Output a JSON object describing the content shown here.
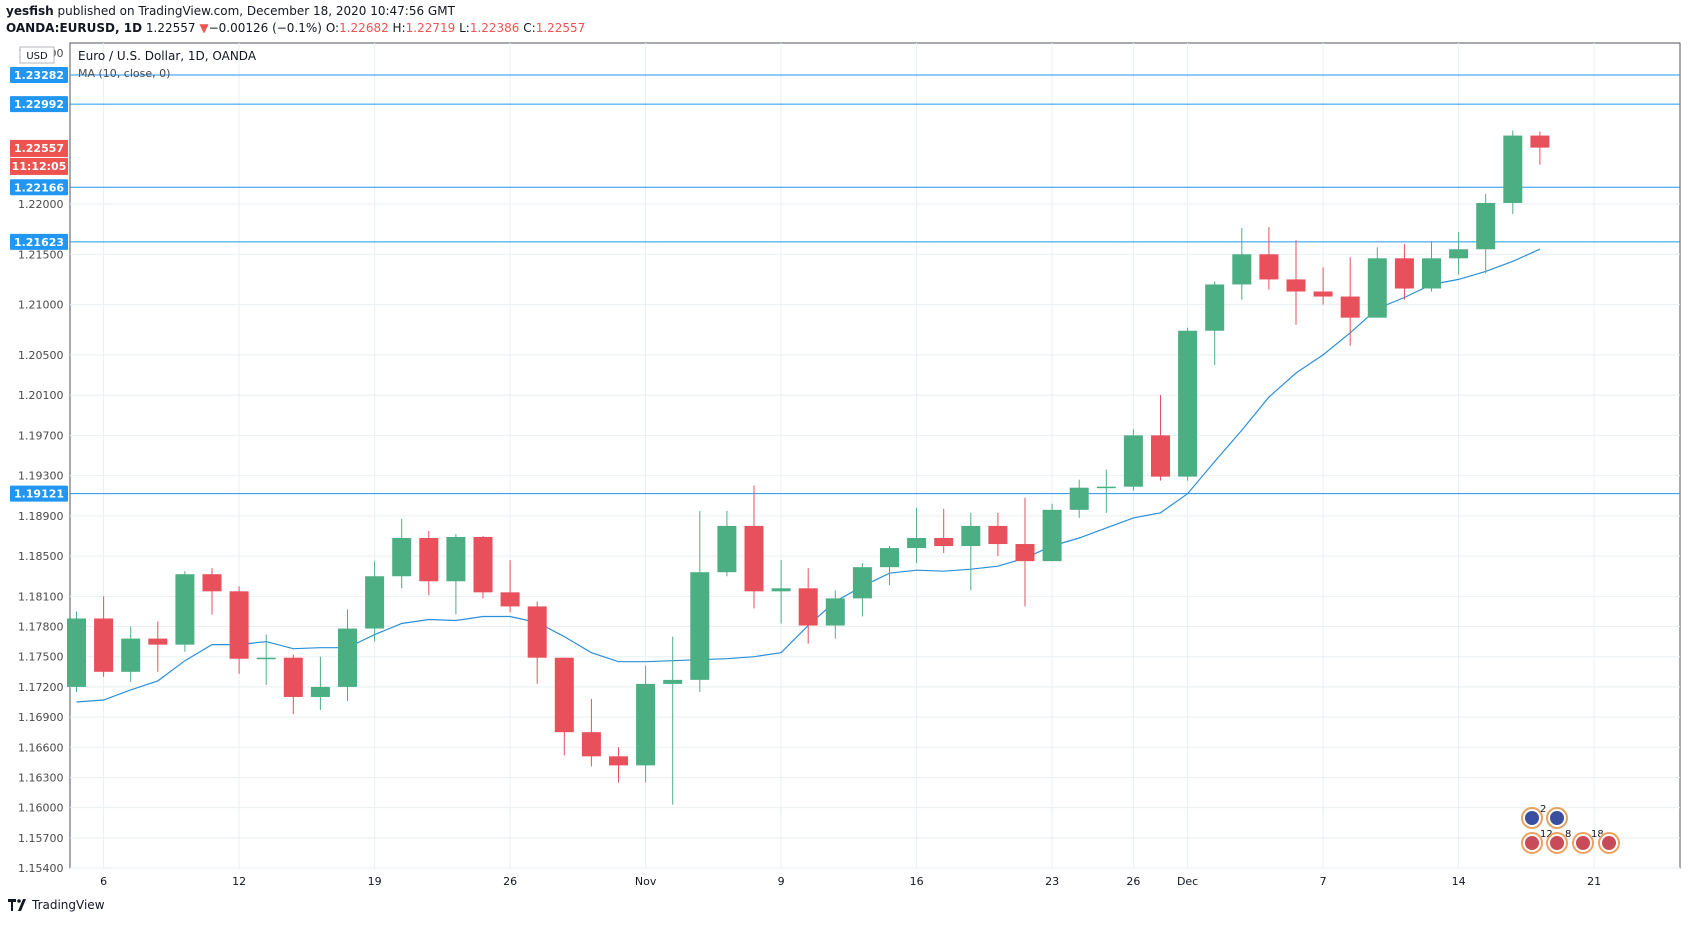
{
  "header": {
    "author": "yesfish",
    "publish_text": " published on TradingView.com, December 18, 2020 10:47:56 GMT",
    "symbol": "OANDA:EURUSD, 1D",
    "last": "1.22557",
    "change_arrow": "▼",
    "change": "−0.00126 (−0.1%)",
    "o_label": "O:",
    "o_value": "1.22682",
    "h_label": "H:",
    "h_value": "1.22719",
    "l_label": "L:",
    "l_value": "1.22386",
    "c_label": "C:",
    "c_value": "1.22557"
  },
  "legend": {
    "currency_badge": "USD",
    "title": "Euro / U.S. Dollar, 1D, OANDA",
    "ma": "MA (10, close, 0)"
  },
  "footer": {
    "brand": "TradingView",
    "logo_icon": "tradingview-logo-icon"
  },
  "colors": {
    "up": "#4caf84",
    "down": "#e8505b",
    "ma_line": "#2b90d9",
    "hline": "#2196f3",
    "grid": "#e9eff3",
    "price_badge": "#ef5350"
  },
  "chart_data": {
    "type": "candlestick",
    "title": "Euro / U.S. Dollar, 1D, OANDA",
    "ylim": [
      1.154,
      1.236
    ],
    "y_ticks": [
      "1.15400",
      "1.15700",
      "1.16000",
      "1.16300",
      "1.16600",
      "1.16900",
      "1.17200",
      "1.17500",
      "1.17800",
      "1.18100",
      "1.18500",
      "1.18900",
      "1.19300",
      "1.19700",
      "1.20100",
      "1.20500",
      "1.21000",
      "1.21500",
      "1.22000"
    ],
    "x_ticks": [
      {
        "i": 1,
        "label": "6"
      },
      {
        "i": 6,
        "label": "12"
      },
      {
        "i": 11,
        "label": "19"
      },
      {
        "i": 16,
        "label": "26"
      },
      {
        "i": 21,
        "label": "Nov"
      },
      {
        "i": 26,
        "label": "9"
      },
      {
        "i": 31,
        "label": "16"
      },
      {
        "i": 36,
        "label": "23"
      },
      {
        "i": 39,
        "label": "26"
      },
      {
        "i": 41,
        "label": "Dec"
      },
      {
        "i": 46,
        "label": "7"
      },
      {
        "i": 51,
        "label": "14"
      },
      {
        "i": 56,
        "label": "21"
      }
    ],
    "candles": [
      {
        "o": 1.172,
        "h": 1.1795,
        "l": 1.1715,
        "c": 1.1788
      },
      {
        "o": 1.1788,
        "h": 1.181,
        "l": 1.173,
        "c": 1.1735
      },
      {
        "o": 1.1735,
        "h": 1.178,
        "l": 1.1725,
        "c": 1.1768
      },
      {
        "o": 1.1768,
        "h": 1.1785,
        "l": 1.1735,
        "c": 1.1762
      },
      {
        "o": 1.1762,
        "h": 1.1835,
        "l": 1.1755,
        "c": 1.1832
      },
      {
        "o": 1.1832,
        "h": 1.1838,
        "l": 1.1792,
        "c": 1.1815
      },
      {
        "o": 1.1815,
        "h": 1.182,
        "l": 1.1733,
        "c": 1.1748
      },
      {
        "o": 1.1748,
        "h": 1.1772,
        "l": 1.1722,
        "c": 1.1749
      },
      {
        "o": 1.1749,
        "h": 1.1752,
        "l": 1.1693,
        "c": 1.171
      },
      {
        "o": 1.171,
        "h": 1.175,
        "l": 1.1697,
        "c": 1.172
      },
      {
        "o": 1.172,
        "h": 1.1797,
        "l": 1.1706,
        "c": 1.1778
      },
      {
        "o": 1.1778,
        "h": 1.1845,
        "l": 1.1765,
        "c": 1.183
      },
      {
        "o": 1.183,
        "h": 1.1887,
        "l": 1.1818,
        "c": 1.1868
      },
      {
        "o": 1.1868,
        "h": 1.1875,
        "l": 1.1811,
        "c": 1.1825
      },
      {
        "o": 1.1825,
        "h": 1.1872,
        "l": 1.1792,
        "c": 1.1869
      },
      {
        "o": 1.1869,
        "h": 1.187,
        "l": 1.1808,
        "c": 1.1814
      },
      {
        "o": 1.1814,
        "h": 1.1846,
        "l": 1.1794,
        "c": 1.18
      },
      {
        "o": 1.18,
        "h": 1.1805,
        "l": 1.1723,
        "c": 1.1749
      },
      {
        "o": 1.1749,
        "h": 1.1749,
        "l": 1.1652,
        "c": 1.1675
      },
      {
        "o": 1.1675,
        "h": 1.1708,
        "l": 1.1641,
        "c": 1.1651
      },
      {
        "o": 1.1651,
        "h": 1.166,
        "l": 1.1625,
        "c": 1.1642
      },
      {
        "o": 1.1642,
        "h": 1.1741,
        "l": 1.1625,
        "c": 1.1723
      },
      {
        "o": 1.1723,
        "h": 1.177,
        "l": 1.1603,
        "c": 1.1727
      },
      {
        "o": 1.1727,
        "h": 1.1895,
        "l": 1.1715,
        "c": 1.1834
      },
      {
        "o": 1.1834,
        "h": 1.1895,
        "l": 1.183,
        "c": 1.188
      },
      {
        "o": 1.188,
        "h": 1.192,
        "l": 1.1798,
        "c": 1.1815
      },
      {
        "o": 1.1815,
        "h": 1.1846,
        "l": 1.1783,
        "c": 1.1818
      },
      {
        "o": 1.1818,
        "h": 1.1838,
        "l": 1.1763,
        "c": 1.1781
      },
      {
        "o": 1.1781,
        "h": 1.1816,
        "l": 1.1768,
        "c": 1.1808
      },
      {
        "o": 1.1808,
        "h": 1.1843,
        "l": 1.179,
        "c": 1.1839
      },
      {
        "o": 1.1839,
        "h": 1.186,
        "l": 1.1821,
        "c": 1.1858
      },
      {
        "o": 1.1858,
        "h": 1.1898,
        "l": 1.1843,
        "c": 1.1868
      },
      {
        "o": 1.1868,
        "h": 1.1897,
        "l": 1.1853,
        "c": 1.186
      },
      {
        "o": 1.186,
        "h": 1.1893,
        "l": 1.1816,
        "c": 1.188
      },
      {
        "o": 1.188,
        "h": 1.1893,
        "l": 1.185,
        "c": 1.1862
      },
      {
        "o": 1.1862,
        "h": 1.1908,
        "l": 1.18,
        "c": 1.1845
      },
      {
        "o": 1.1845,
        "h": 1.1902,
        "l": 1.1845,
        "c": 1.1896
      },
      {
        "o": 1.1896,
        "h": 1.1926,
        "l": 1.1888,
        "c": 1.1918
      },
      {
        "o": 1.1918,
        "h": 1.1936,
        "l": 1.1893,
        "c": 1.1919
      },
      {
        "o": 1.1919,
        "h": 1.1976,
        "l": 1.1915,
        "c": 1.197
      },
      {
        "o": 1.197,
        "h": 1.201,
        "l": 1.1925,
        "c": 1.1929
      },
      {
        "o": 1.1929,
        "h": 1.2077,
        "l": 1.1925,
        "c": 1.2074
      },
      {
        "o": 1.2074,
        "h": 1.2123,
        "l": 1.204,
        "c": 1.212
      },
      {
        "o": 1.212,
        "h": 1.2176,
        "l": 1.2105,
        "c": 1.215
      },
      {
        "o": 1.215,
        "h": 1.2177,
        "l": 1.2115,
        "c": 1.2125
      },
      {
        "o": 1.2125,
        "h": 1.2164,
        "l": 1.208,
        "c": 1.2113
      },
      {
        "o": 1.2113,
        "h": 1.2137,
        "l": 1.21,
        "c": 1.2108
      },
      {
        "o": 1.2108,
        "h": 1.2147,
        "l": 1.2059,
        "c": 1.2087
      },
      {
        "o": 1.2087,
        "h": 1.2157,
        "l": 1.2087,
        "c": 1.2146
      },
      {
        "o": 1.2146,
        "h": 1.216,
        "l": 1.2105,
        "c": 1.2116
      },
      {
        "o": 1.2116,
        "h": 1.2163,
        "l": 1.2113,
        "c": 1.2146
      },
      {
        "o": 1.2146,
        "h": 1.2172,
        "l": 1.213,
        "c": 1.2155
      },
      {
        "o": 1.2155,
        "h": 1.221,
        "l": 1.2131,
        "c": 1.2201
      },
      {
        "o": 1.2201,
        "h": 1.2273,
        "l": 1.219,
        "c": 1.2268
      },
      {
        "o": 1.2268,
        "h": 1.2272,
        "l": 1.2239,
        "c": 1.2256
      }
    ],
    "ma_series": {
      "name": "MA (10, close, 0)",
      "values": [
        1.1705,
        1.1707,
        1.1717,
        1.1726,
        1.1746,
        1.1762,
        1.1762,
        1.1765,
        1.1758,
        1.1759,
        1.1759,
        1.1772,
        1.1783,
        1.1787,
        1.1786,
        1.179,
        1.179,
        1.1784,
        1.177,
        1.1754,
        1.1745,
        1.1745,
        1.1746,
        1.1747,
        1.1748,
        1.175,
        1.1754,
        1.1781,
        1.1805,
        1.182,
        1.1833,
        1.1836,
        1.1835,
        1.1837,
        1.184,
        1.1848,
        1.186,
        1.1868,
        1.1878,
        1.1888,
        1.1893,
        1.1912,
        1.1944,
        1.1975,
        1.2008,
        1.2032,
        1.205,
        1.2072,
        1.2096,
        1.2107,
        1.212,
        1.2125,
        1.2133,
        1.2143,
        1.2155
      ]
    },
    "h_lines": [
      {
        "value": 1.23282,
        "label": "1.23282"
      },
      {
        "value": 1.22992,
        "label": "1.22992"
      },
      {
        "value": 1.22166,
        "label": "1.22166"
      },
      {
        "value": 1.21623,
        "label": "1.21623"
      },
      {
        "value": 1.19121,
        "label": "1.19121"
      }
    ],
    "price_badge": {
      "value": 1.22557,
      "label": "1.22557",
      "countdown": "11:12:05"
    },
    "top_tick": "1.23500",
    "event_icons": [
      {
        "label": "2",
        "type": "eu-flag"
      },
      {
        "label": "",
        "type": "eu-flag"
      },
      {
        "label": "12",
        "type": "us-flag"
      },
      {
        "label": "8",
        "type": "us-flag"
      },
      {
        "label": "18",
        "type": "us-flag"
      },
      {
        "label": "",
        "type": "us-flag"
      }
    ]
  }
}
